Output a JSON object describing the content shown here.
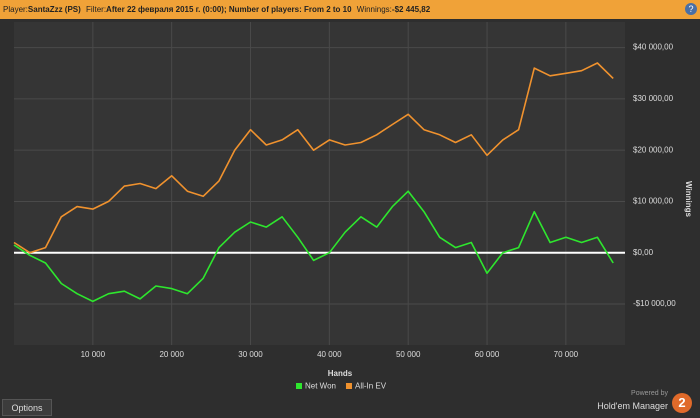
{
  "header": {
    "player_label": "Player:",
    "player": "SantaZzz (PS)",
    "filter_label": "Filter:",
    "filter": "After 22 февраля 2015 г. (0:00); Number of players: From 2 to 10",
    "winnings_label": "Winnings:",
    "winnings": "-$2 445,82",
    "help": "?"
  },
  "footer": {
    "options": "Options",
    "powered": "Powered by",
    "brand": "Hold'em Manager",
    "badge": "2"
  },
  "chart_data": {
    "type": "line",
    "x_label": "Hands",
    "y_label": "Winnings",
    "x": [
      0,
      2000,
      4000,
      6000,
      8000,
      10000,
      12000,
      14000,
      16000,
      18000,
      20000,
      22000,
      24000,
      26000,
      28000,
      30000,
      32000,
      34000,
      36000,
      38000,
      40000,
      42000,
      44000,
      46000,
      48000,
      50000,
      52000,
      54000,
      56000,
      58000,
      60000,
      62000,
      64000,
      66000,
      68000,
      70000,
      72000,
      74000,
      76000
    ],
    "series": [
      {
        "name": "Net Won",
        "color": "#2ee62e",
        "values": [
          1500,
          -500,
          -2000,
          -6000,
          -8000,
          -9500,
          -8000,
          -7500,
          -9000,
          -6500,
          -7000,
          -8000,
          -5000,
          1000,
          4000,
          6000,
          5000,
          7000,
          3000,
          -1500,
          0,
          4000,
          7000,
          5000,
          9000,
          12000,
          8000,
          3000,
          1000,
          2000,
          -4000,
          0,
          1000,
          8000,
          2000,
          3000,
          2000,
          3000,
          -2000
        ]
      },
      {
        "name": "All-In EV",
        "color": "#f0922e",
        "values": [
          2000,
          0,
          1000,
          7000,
          9000,
          8500,
          10000,
          13000,
          13500,
          12500,
          15000,
          12000,
          11000,
          14000,
          20000,
          24000,
          21000,
          22000,
          24000,
          20000,
          22000,
          21000,
          21500,
          23000,
          25000,
          27000,
          24000,
          23000,
          21500,
          23000,
          19000,
          22000,
          24000,
          36000,
          34500,
          35000,
          35500,
          37000,
          34000
        ]
      }
    ],
    "xlim": [
      0,
      77500
    ],
    "ylim": [
      -18000,
      45000
    ],
    "xticks": [
      {
        "value": 10000,
        "label": "10 000"
      },
      {
        "value": 20000,
        "label": "20 000"
      },
      {
        "value": 30000,
        "label": "30 000"
      },
      {
        "value": 40000,
        "label": "40 000"
      },
      {
        "value": 50000,
        "label": "50 000"
      },
      {
        "value": 60000,
        "label": "60 000"
      },
      {
        "value": 70000,
        "label": "70 000"
      }
    ],
    "yticks": [
      {
        "value": -10000,
        "label": "-$10 000,00"
      },
      {
        "value": 0,
        "label": "$0,00"
      },
      {
        "value": 10000,
        "label": "$10 000,00"
      },
      {
        "value": 20000,
        "label": "$20 000,00"
      },
      {
        "value": 30000,
        "label": "$30 000,00"
      },
      {
        "value": 40000,
        "label": "$40 000,00"
      }
    ],
    "grid": true
  }
}
